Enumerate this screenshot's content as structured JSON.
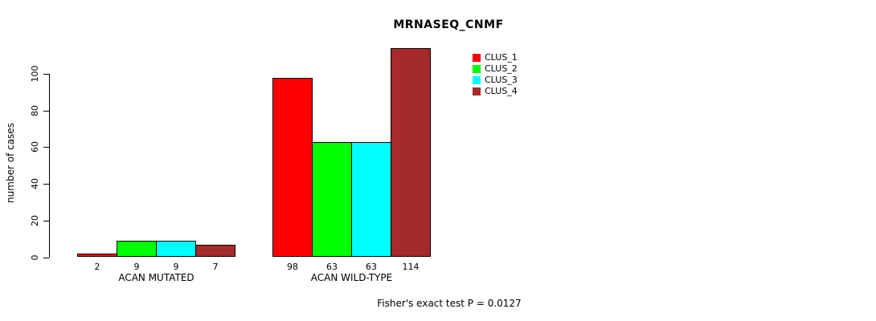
{
  "title": "MRNASEQ_CNMF",
  "chart_data": {
    "type": "bar",
    "title": "MRNASEQ_CNMF",
    "ylabel": "number of cases",
    "xlabel": "",
    "ylim": [
      0,
      100
    ],
    "yticks": [
      0,
      20,
      40,
      60,
      80,
      100
    ],
    "grid": false,
    "legend_position": "top-right-inside",
    "categories": [
      "ACAN MUTATED",
      "ACAN WILD-TYPE"
    ],
    "series": [
      {
        "name": "CLUS_1",
        "color": "#FF0000",
        "values": [
          2,
          98
        ]
      },
      {
        "name": "CLUS_2",
        "color": "#00FF00",
        "values": [
          9,
          63
        ]
      },
      {
        "name": "CLUS_3",
        "color": "#00FFFF",
        "values": [
          9,
          63
        ]
      },
      {
        "name": "CLUS_4",
        "color": "#A52A2A",
        "values": [
          7,
          114
        ]
      }
    ],
    "bar_labels": [
      [
        2,
        9,
        9,
        7
      ],
      [
        98,
        63,
        63,
        114
      ]
    ],
    "annotation": "Fisher's exact test P = 0.0127"
  }
}
